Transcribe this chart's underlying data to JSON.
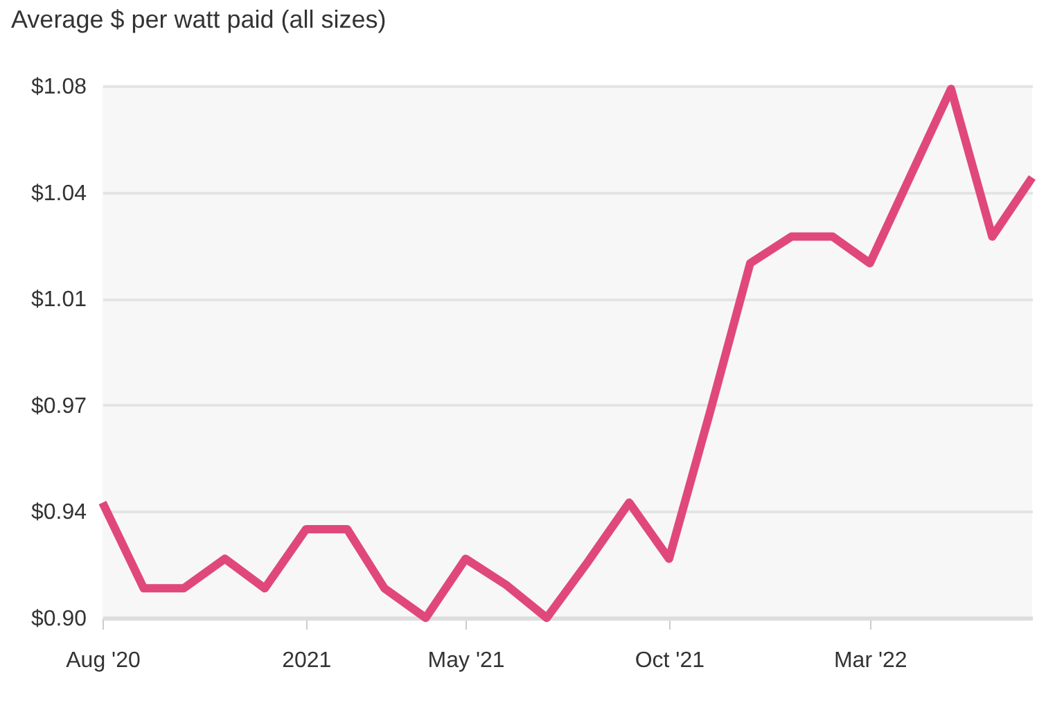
{
  "chart_data": {
    "type": "line",
    "title": "Average $ per watt paid (all sizes)",
    "x": [
      "2020-08",
      "2020-09",
      "2020-10",
      "2020-11",
      "2020-12",
      "2021-01",
      "2021-02",
      "2021-03",
      "2021-04",
      "2021-05",
      "2021-06",
      "2021-07",
      "2021-08",
      "2021-09",
      "2021-10",
      "2021-11",
      "2021-12",
      "2022-01",
      "2022-02",
      "2022-03",
      "2022-04",
      "2022-05",
      "2022-06",
      "2022-07"
    ],
    "series": [
      {
        "color": "#e0487c",
        "values": [
          0.939,
          0.91,
          0.91,
          0.92,
          0.91,
          0.93,
          0.93,
          0.91,
          0.9,
          0.92,
          0.911,
          0.9,
          0.919,
          0.939,
          0.92,
          0.97,
          1.02,
          1.029,
          1.029,
          1.02,
          1.05,
          1.079,
          1.029,
          1.049
        ]
      }
    ],
    "xlim": [
      "2020-08",
      "2022-07"
    ],
    "xticks": [
      {
        "value": "2020-08",
        "label": "Aug '20"
      },
      {
        "value": "2021-01",
        "label": "2021"
      },
      {
        "value": "2021-05",
        "label": "May '21"
      },
      {
        "value": "2021-10",
        "label": "Oct '21"
      },
      {
        "value": "2022-03",
        "label": "Mar '22"
      }
    ],
    "ylim": [
      0.9,
      1.08
    ],
    "yticks": [
      {
        "value": 0.9,
        "label": "$0.90"
      },
      {
        "value": 0.936,
        "label": "$0.94"
      },
      {
        "value": 0.972,
        "label": "$0.97"
      },
      {
        "value": 1.008,
        "label": "$1.01"
      },
      {
        "value": 1.044,
        "label": "$1.04"
      },
      {
        "value": 1.08,
        "label": "$1.08"
      }
    ],
    "grid": "y",
    "legend": false,
    "marker": "none",
    "line_style": "solid"
  }
}
